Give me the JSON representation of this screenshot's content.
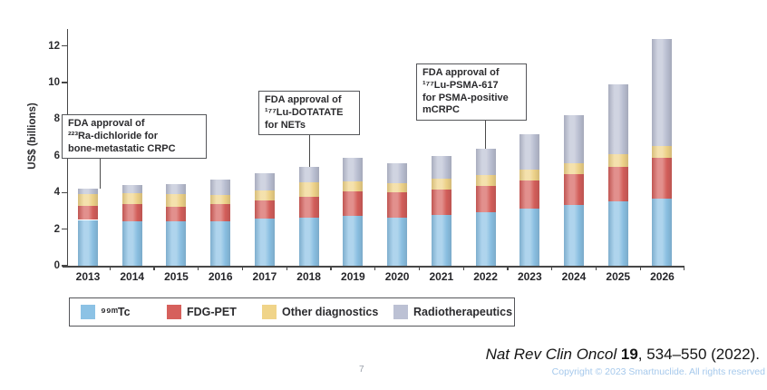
{
  "page": {
    "page_number": "7",
    "copyright": "Copyright © 2023 Smartnuclide. All rights reserved",
    "citation": {
      "journal": "Nat Rev Clin Oncol",
      "volume": "19",
      "rest": ", 534–550 (2022)."
    }
  },
  "chart_data": {
    "type": "bar",
    "stacked": true,
    "title": "",
    "xlabel": "",
    "ylabel": "US$ (billions)",
    "ylim": [
      0,
      13
    ],
    "yticks": [
      0,
      2,
      4,
      6,
      8,
      10,
      12
    ],
    "grid": false,
    "legend_position": "bottom",
    "categories": [
      "2013",
      "2014",
      "2015",
      "2016",
      "2017",
      "2018",
      "2019",
      "2020",
      "2021",
      "2022",
      "2023",
      "2024",
      "2025",
      "2026"
    ],
    "series": [
      {
        "name": "⁹⁹ᵐTc",
        "color": "#8cc2e5",
        "values": [
          2.5,
          2.45,
          2.45,
          2.45,
          2.55,
          2.6,
          2.7,
          2.6,
          2.75,
          2.9,
          3.1,
          3.3,
          3.5,
          3.65
        ]
      },
      {
        "name": "FDG-PET",
        "color": "#d6605c",
        "values": [
          0.75,
          0.9,
          0.75,
          0.9,
          1.0,
          1.15,
          1.35,
          1.4,
          1.4,
          1.45,
          1.55,
          1.7,
          1.9,
          2.25
        ]
      },
      {
        "name": "Other diagnostics",
        "color": "#f0d489",
        "values": [
          0.65,
          0.6,
          0.7,
          0.5,
          0.55,
          0.8,
          0.55,
          0.5,
          0.6,
          0.6,
          0.6,
          0.6,
          0.7,
          0.65
        ]
      },
      {
        "name": "Radiotherapeutics",
        "color": "#bcc1d4",
        "values": [
          0.3,
          0.45,
          0.55,
          0.85,
          0.95,
          0.85,
          1.3,
          1.1,
          1.25,
          1.45,
          1.95,
          2.6,
          3.8,
          5.85
        ]
      }
    ],
    "totals": [
      4.2,
      4.4,
      4.45,
      4.7,
      5.05,
      5.4,
      5.9,
      5.6,
      6.0,
      6.4,
      7.2,
      8.2,
      9.9,
      12.4
    ],
    "annotations": [
      {
        "year": "2013",
        "lines": [
          "FDA approval of",
          "²²³Ra-dichloride for",
          "bone-metastatic CRPC"
        ]
      },
      {
        "year": "2018",
        "lines": [
          "FDA approval of",
          "¹⁷⁷Lu-DOTATATE",
          "for NETs"
        ]
      },
      {
        "year": "2022",
        "lines": [
          "FDA approval of",
          "¹⁷⁷Lu-PSMA-617",
          "for PSMA-positive",
          "mCRPC"
        ]
      }
    ]
  }
}
